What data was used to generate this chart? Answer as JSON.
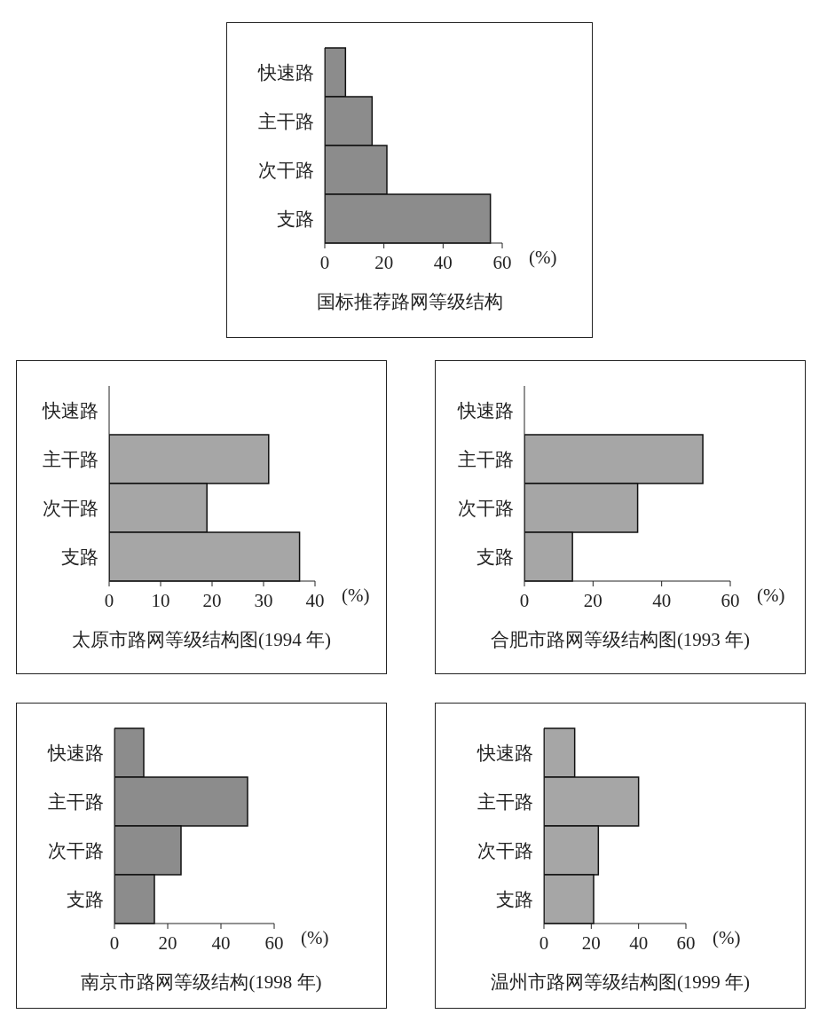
{
  "chart_data": [
    {
      "type": "bar",
      "orientation": "horizontal",
      "title": "国标推荐路网等级结构",
      "xlabel": "(%)",
      "categories": [
        "快速路",
        "主干路",
        "次干路",
        "支路"
      ],
      "color": "#8c8c8c",
      "values": [
        7,
        16,
        21,
        56
      ],
      "xlim": [
        0,
        60
      ],
      "xticks": [
        0,
        20,
        40,
        60
      ]
    },
    {
      "type": "bar",
      "orientation": "horizontal",
      "title": "太原市路网等级结构图(1994 年)",
      "xlabel": "(%)",
      "categories": [
        "快速路",
        "主干路",
        "次干路",
        "支路"
      ],
      "color": "#a6a6a6",
      "values": [
        0,
        31,
        19,
        37
      ],
      "xlim": [
        0,
        40
      ],
      "xticks": [
        0,
        10,
        20,
        30,
        40
      ]
    },
    {
      "type": "bar",
      "orientation": "horizontal",
      "title": "合肥市路网等级结构图(1993 年)",
      "xlabel": "(%)",
      "categories": [
        "快速路",
        "主干路",
        "次干路",
        "支路"
      ],
      "color": "#a6a6a6",
      "values": [
        0,
        52,
        33,
        14
      ],
      "xlim": [
        0,
        60
      ],
      "xticks": [
        0,
        20,
        40,
        60
      ]
    },
    {
      "type": "bar",
      "orientation": "horizontal",
      "title": "南京市路网等级结构(1998 年)",
      "xlabel": "(%)",
      "categories": [
        "快速路",
        "主干路",
        "次干路",
        "支路"
      ],
      "color": "#8c8c8c",
      "values": [
        11,
        50,
        25,
        15
      ],
      "xlim": [
        0,
        60
      ],
      "xticks": [
        0,
        20,
        40,
        60
      ]
    },
    {
      "type": "bar",
      "orientation": "horizontal",
      "title": "温州市路网等级结构图(1999 年)",
      "xlabel": "(%)",
      "categories": [
        "快速路",
        "主干路",
        "次干路",
        "支路"
      ],
      "color": "#a6a6a6",
      "values": [
        13,
        40,
        23,
        21
      ],
      "xlim": [
        0,
        60
      ],
      "xticks": [
        0,
        20,
        40,
        60
      ]
    }
  ]
}
